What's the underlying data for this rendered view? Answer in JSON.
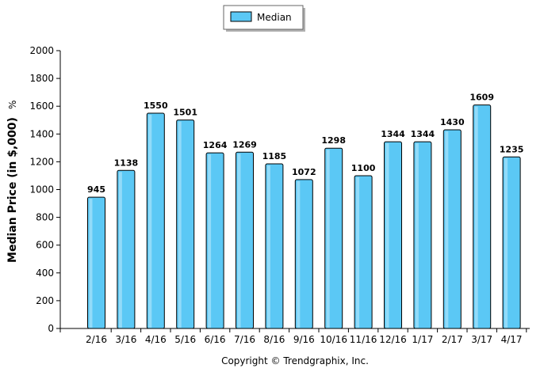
{
  "chart_data": {
    "type": "bar",
    "title": "",
    "xlabel": "",
    "ylabel": "Median Price (in $,000)",
    "ylabel_suffix": "%",
    "categories": [
      "2/16",
      "3/16",
      "4/16",
      "5/16",
      "6/16",
      "7/16",
      "8/16",
      "9/16",
      "10/16",
      "11/16",
      "12/16",
      "1/17",
      "2/17",
      "3/17",
      "4/17"
    ],
    "series": [
      {
        "name": "Median",
        "values": [
          945,
          1138,
          1550,
          1501,
          1264,
          1269,
          1185,
          1072,
          1298,
          1100,
          1344,
          1344,
          1430,
          1609,
          1235
        ]
      }
    ],
    "ylim": [
      0,
      2000
    ],
    "yticks": [
      0,
      200,
      400,
      600,
      800,
      1000,
      1200,
      1400,
      1600,
      1800,
      2000
    ],
    "grid": false,
    "legend_position": "top-center",
    "bar_color": "#5bc8f5"
  },
  "footer": {
    "copyright": "Copyright © Trendgraphix, Inc."
  }
}
